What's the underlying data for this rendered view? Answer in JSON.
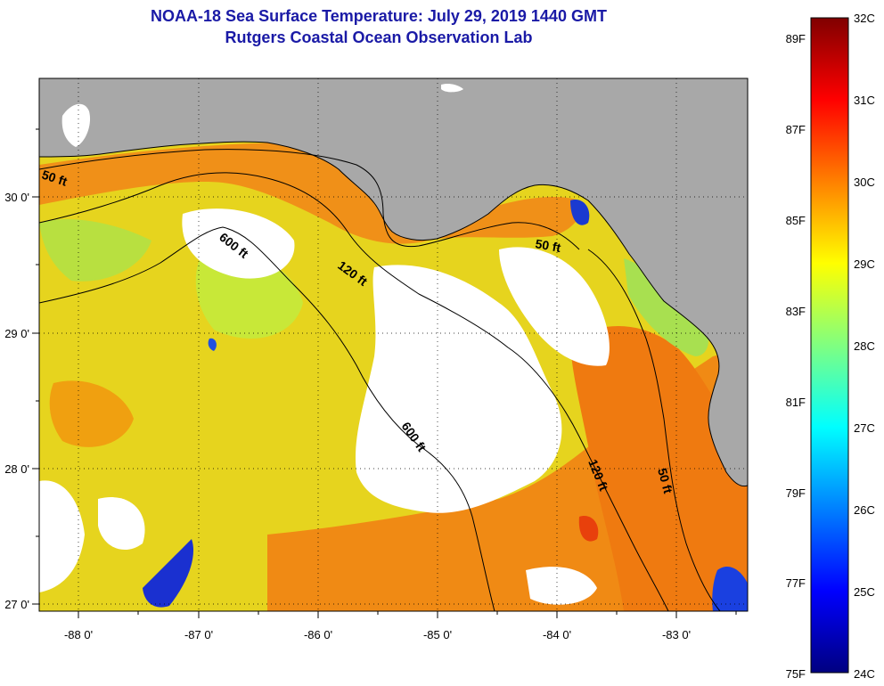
{
  "header": {
    "title": "NOAA-18 Sea Surface Temperature:  July 29, 2019 1440 GMT",
    "subtitle": "Rutgers Coastal Ocean Observation Lab"
  },
  "map": {
    "region": "Northeastern Gulf of Mexico / Florida west coast",
    "lon_range": [
      -88.35,
      -82.45
    ],
    "lat_range": [
      26.95,
      30.85
    ],
    "lon_ticks": [
      "-88 0'",
      "-87 0'",
      "-86 0'",
      "-85 0'",
      "-84 0'",
      "-83 0'"
    ],
    "lat_ticks": [
      "30 0'",
      "29 0'",
      "28 0'",
      "27 0'"
    ],
    "contour_labels": [
      "50 ft",
      "600 ft",
      "120 ft",
      "50 ft",
      "600 ft",
      "120 ft",
      "50 ft"
    ],
    "colors": {
      "land": "#a8a8a8",
      "no_data": "#ffffff",
      "coast": "#000000",
      "graticule": "#000000"
    }
  },
  "colorbar": {
    "celsius_labels": [
      "32C",
      "31C",
      "30C",
      "29C",
      "28C",
      "27C",
      "26C",
      "25C",
      "24C"
    ],
    "fahrenheit_labels": [
      "89F",
      "87F",
      "85F",
      "83F",
      "81F",
      "79F",
      "77F",
      "75F"
    ],
    "range_c": [
      24,
      32
    ],
    "stops": [
      "#000080",
      "#0000ff",
      "#0080ff",
      "#00ffff",
      "#80ff80",
      "#ffff00",
      "#ff8000",
      "#ff0000",
      "#800000"
    ]
  }
}
